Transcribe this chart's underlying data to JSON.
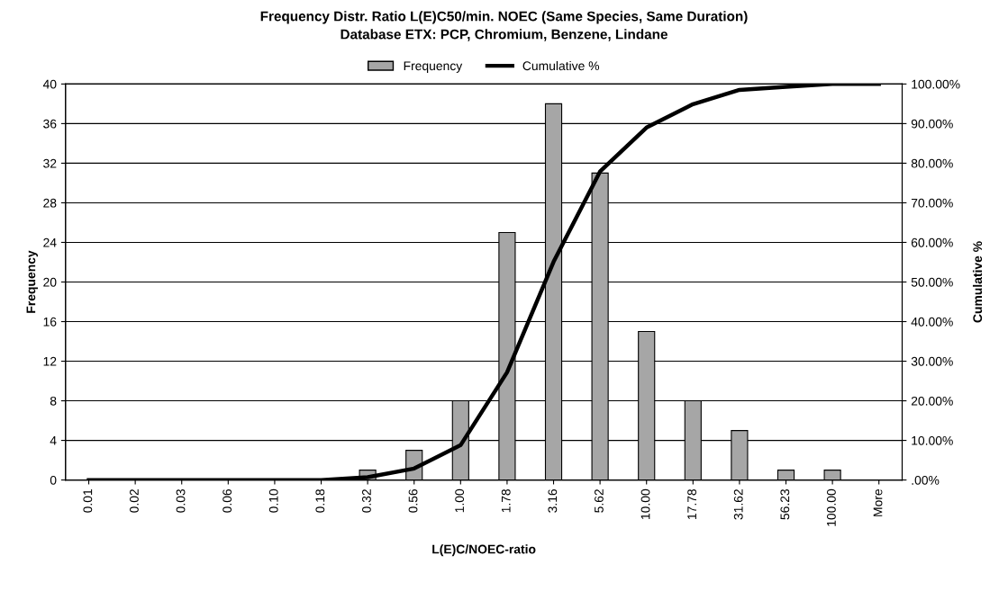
{
  "chart_data": {
    "type": "bar",
    "title": "Frequency Distr. Ratio L(E)C50/min. NOEC (Same Species, Same Duration)",
    "subtitle": "Database ETX: PCP, Chromium, Benzene, Lindane",
    "xlabel": "L(E)C/NOEC-ratio",
    "ylabel": "Frequency",
    "y2label": "Cumulative %",
    "categories": [
      "0.01",
      "0.02",
      "0.03",
      "0.06",
      "0.10",
      "0.18",
      "0.32",
      "0.56",
      "1.00",
      "1.78",
      "3.16",
      "5.62",
      "10.00",
      "17.78",
      "31.62",
      "56.23",
      "100.00",
      "More"
    ],
    "series": [
      {
        "name": "Frequency",
        "color": "#a6a6a6",
        "values": [
          0,
          0,
          0,
          0,
          0,
          0,
          1,
          3,
          8,
          25,
          38,
          31,
          15,
          8,
          5,
          1,
          1,
          0
        ]
      },
      {
        "name": "Cumulative %",
        "type": "line",
        "axis": "y2",
        "color": "#000000",
        "values": [
          0,
          0,
          0,
          0,
          0,
          0,
          0.7,
          2.9,
          8.8,
          27.2,
          55.1,
          77.9,
          89.0,
          94.9,
          98.5,
          99.3,
          100,
          100
        ]
      }
    ],
    "ylim": [
      0,
      40
    ],
    "yticks": [
      0,
      4,
      8,
      12,
      16,
      20,
      24,
      28,
      32,
      36,
      40
    ],
    "y2lim": [
      0,
      100
    ],
    "y2ticks": [
      {
        "value": 0,
        "label": ".00%"
      },
      {
        "value": 10,
        "label": "10.00%"
      },
      {
        "value": 20,
        "label": "20.00%"
      },
      {
        "value": 30,
        "label": "30.00%"
      },
      {
        "value": 40,
        "label": "40.00%"
      },
      {
        "value": 50,
        "label": "50.00%"
      },
      {
        "value": 60,
        "label": "60.00%"
      },
      {
        "value": 70,
        "label": "70.00%"
      },
      {
        "value": 80,
        "label": "80.00%"
      },
      {
        "value": 90,
        "label": "90.00%"
      },
      {
        "value": 100,
        "label": "100.00%"
      }
    ],
    "grid": "y",
    "legend": "top",
    "marker": "none",
    "line_style": "solid"
  }
}
